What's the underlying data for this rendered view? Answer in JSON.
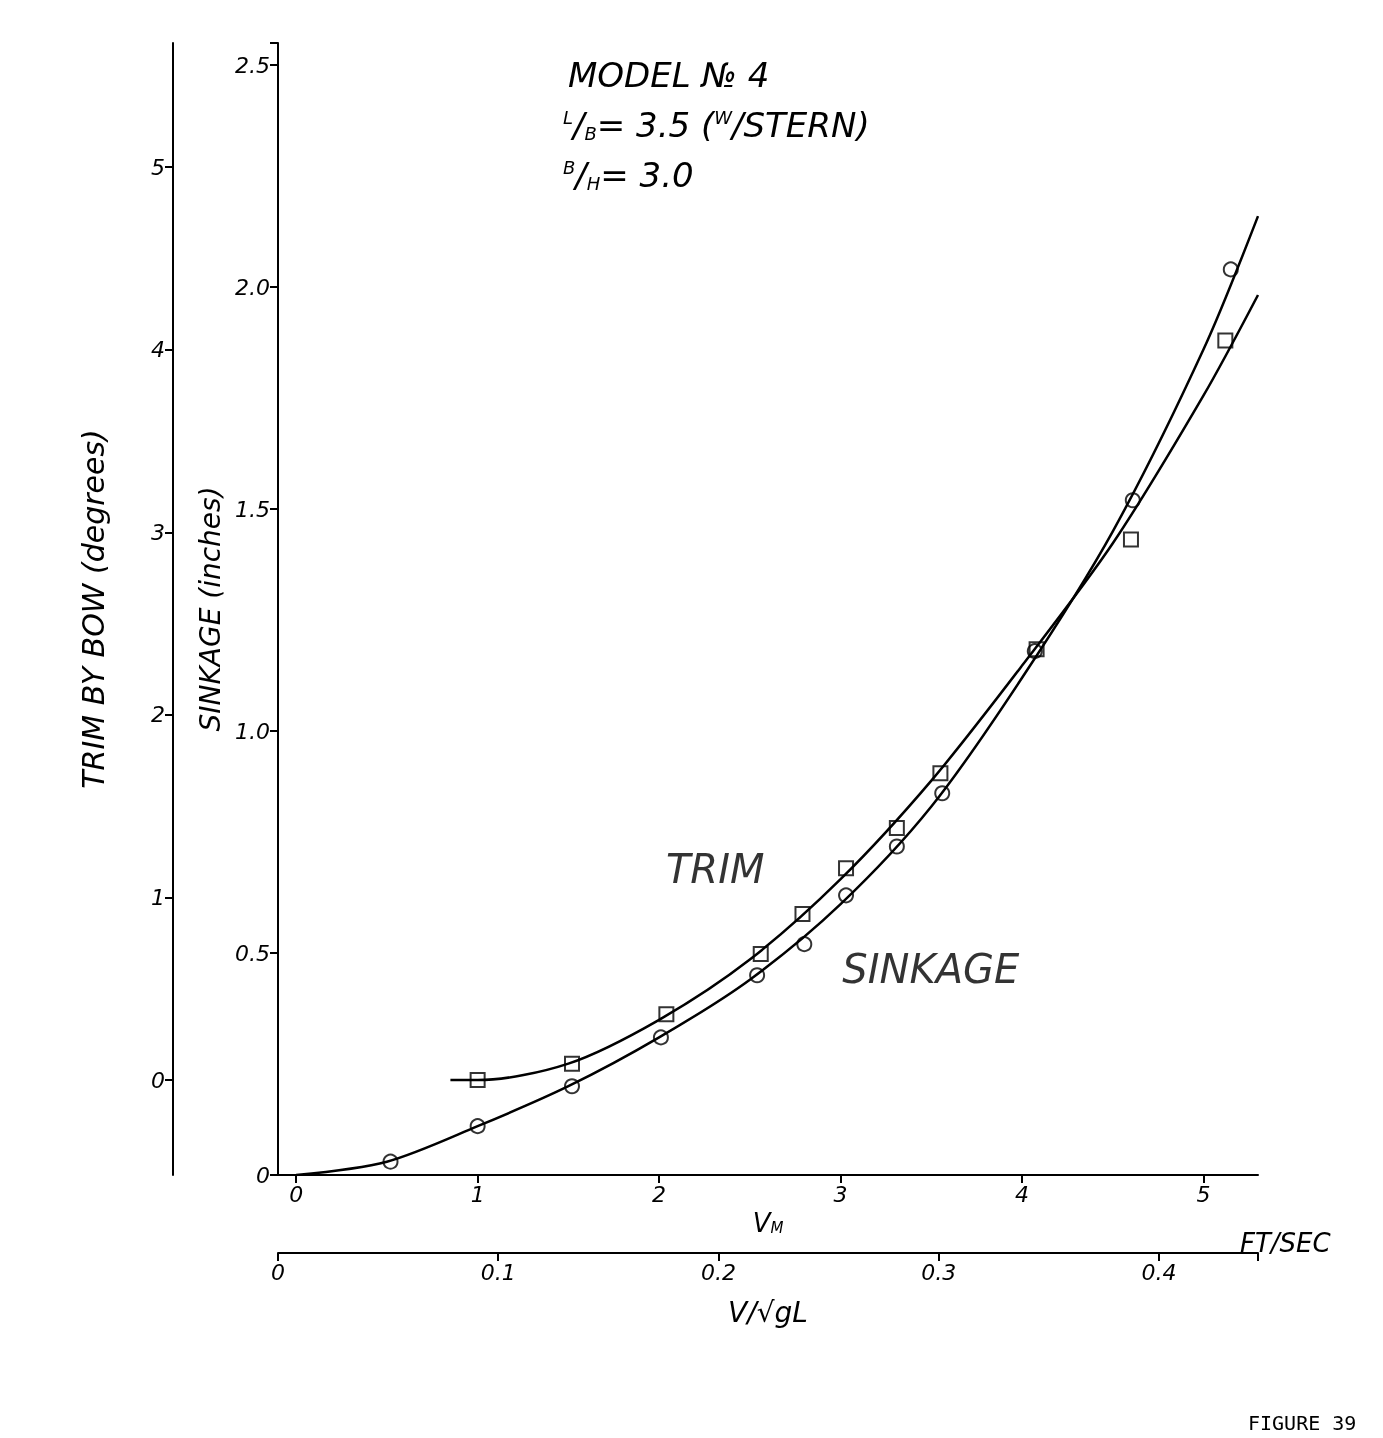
{
  "chart_data": {
    "type": "scatter",
    "xlabel": "V$_{M}$",
    "x2label": "V/√gL",
    "ylabel": "SINKAGE (inches)",
    "y2label": "TRIM BY BOW (degrees)",
    "annotations": [
      "MODEL № 4",
      "$^{L}$/$_{B}$= 3.5 ($^{W}$/STERN)",
      "$^{B}$/$_{H}$= 3.0",
      "FT/SEC",
      "FIGURE 39"
    ],
    "xlim": [
      -0.1,
      5.3
    ],
    "xticks": [
      0,
      1,
      2,
      3,
      4,
      5
    ],
    "x2lim": [
      0,
      0.445
    ],
    "x2ticks": [
      0,
      0.1,
      0.2,
      0.3,
      0.4
    ],
    "ylim": [
      0,
      2.55
    ],
    "yticks": [
      0,
      0.5,
      {
        "value": 1,
        "label": "1.0"
      },
      1.5,
      {
        "value": 2,
        "label": "2.0"
      },
      2.5
    ],
    "y2lim": [
      -0.52,
      5.68
    ],
    "y2ticks": [
      0,
      1,
      2,
      3,
      4,
      5
    ],
    "grid": false,
    "legend": false,
    "series": [
      {
        "name": "TRIM",
        "axis": "y2",
        "marker": "square",
        "color": "#000000",
        "x": [
          1.0,
          1.52,
          2.04,
          2.56,
          2.79,
          3.03,
          3.31,
          3.55,
          4.08,
          4.6,
          5.12
        ],
        "values": [
          0.0,
          0.09,
          0.36,
          0.69,
          0.91,
          1.16,
          1.38,
          1.68,
          2.36,
          2.96,
          4.05
        ]
      },
      {
        "name": "SINKAGE",
        "marker": "circle",
        "color": "#000000",
        "x": [
          0.52,
          1.0,
          1.52,
          2.01,
          2.54,
          2.8,
          3.03,
          3.31,
          3.56,
          4.07,
          4.61,
          5.15
        ],
        "values": [
          0.03,
          0.11,
          0.2,
          0.31,
          0.45,
          0.52,
          0.63,
          0.74,
          0.86,
          1.18,
          1.52,
          2.04
        ]
      },
      {
        "type": "line",
        "axis": "y2",
        "marker": "none",
        "color": "#000000",
        "x": [
          0.85,
          1,
          1.5,
          2,
          2.5,
          3,
          3.5,
          4,
          4.5,
          5,
          5.3
        ],
        "values": [
          0,
          0,
          0.09,
          0.33,
          0.66,
          1.1,
          1.64,
          2.27,
          2.94,
          3.75,
          4.3
        ]
      },
      {
        "type": "line",
        "marker": "none",
        "color": "#000000",
        "x": [
          0,
          0.5,
          1,
          1.5,
          2,
          2.5,
          3,
          3.5,
          4,
          4.5,
          5,
          5.3
        ],
        "values": [
          0,
          0.03,
          0.11,
          0.2,
          0.31,
          0.44,
          0.61,
          0.83,
          1.12,
          1.45,
          1.86,
          2.16
        ]
      }
    ]
  }
}
